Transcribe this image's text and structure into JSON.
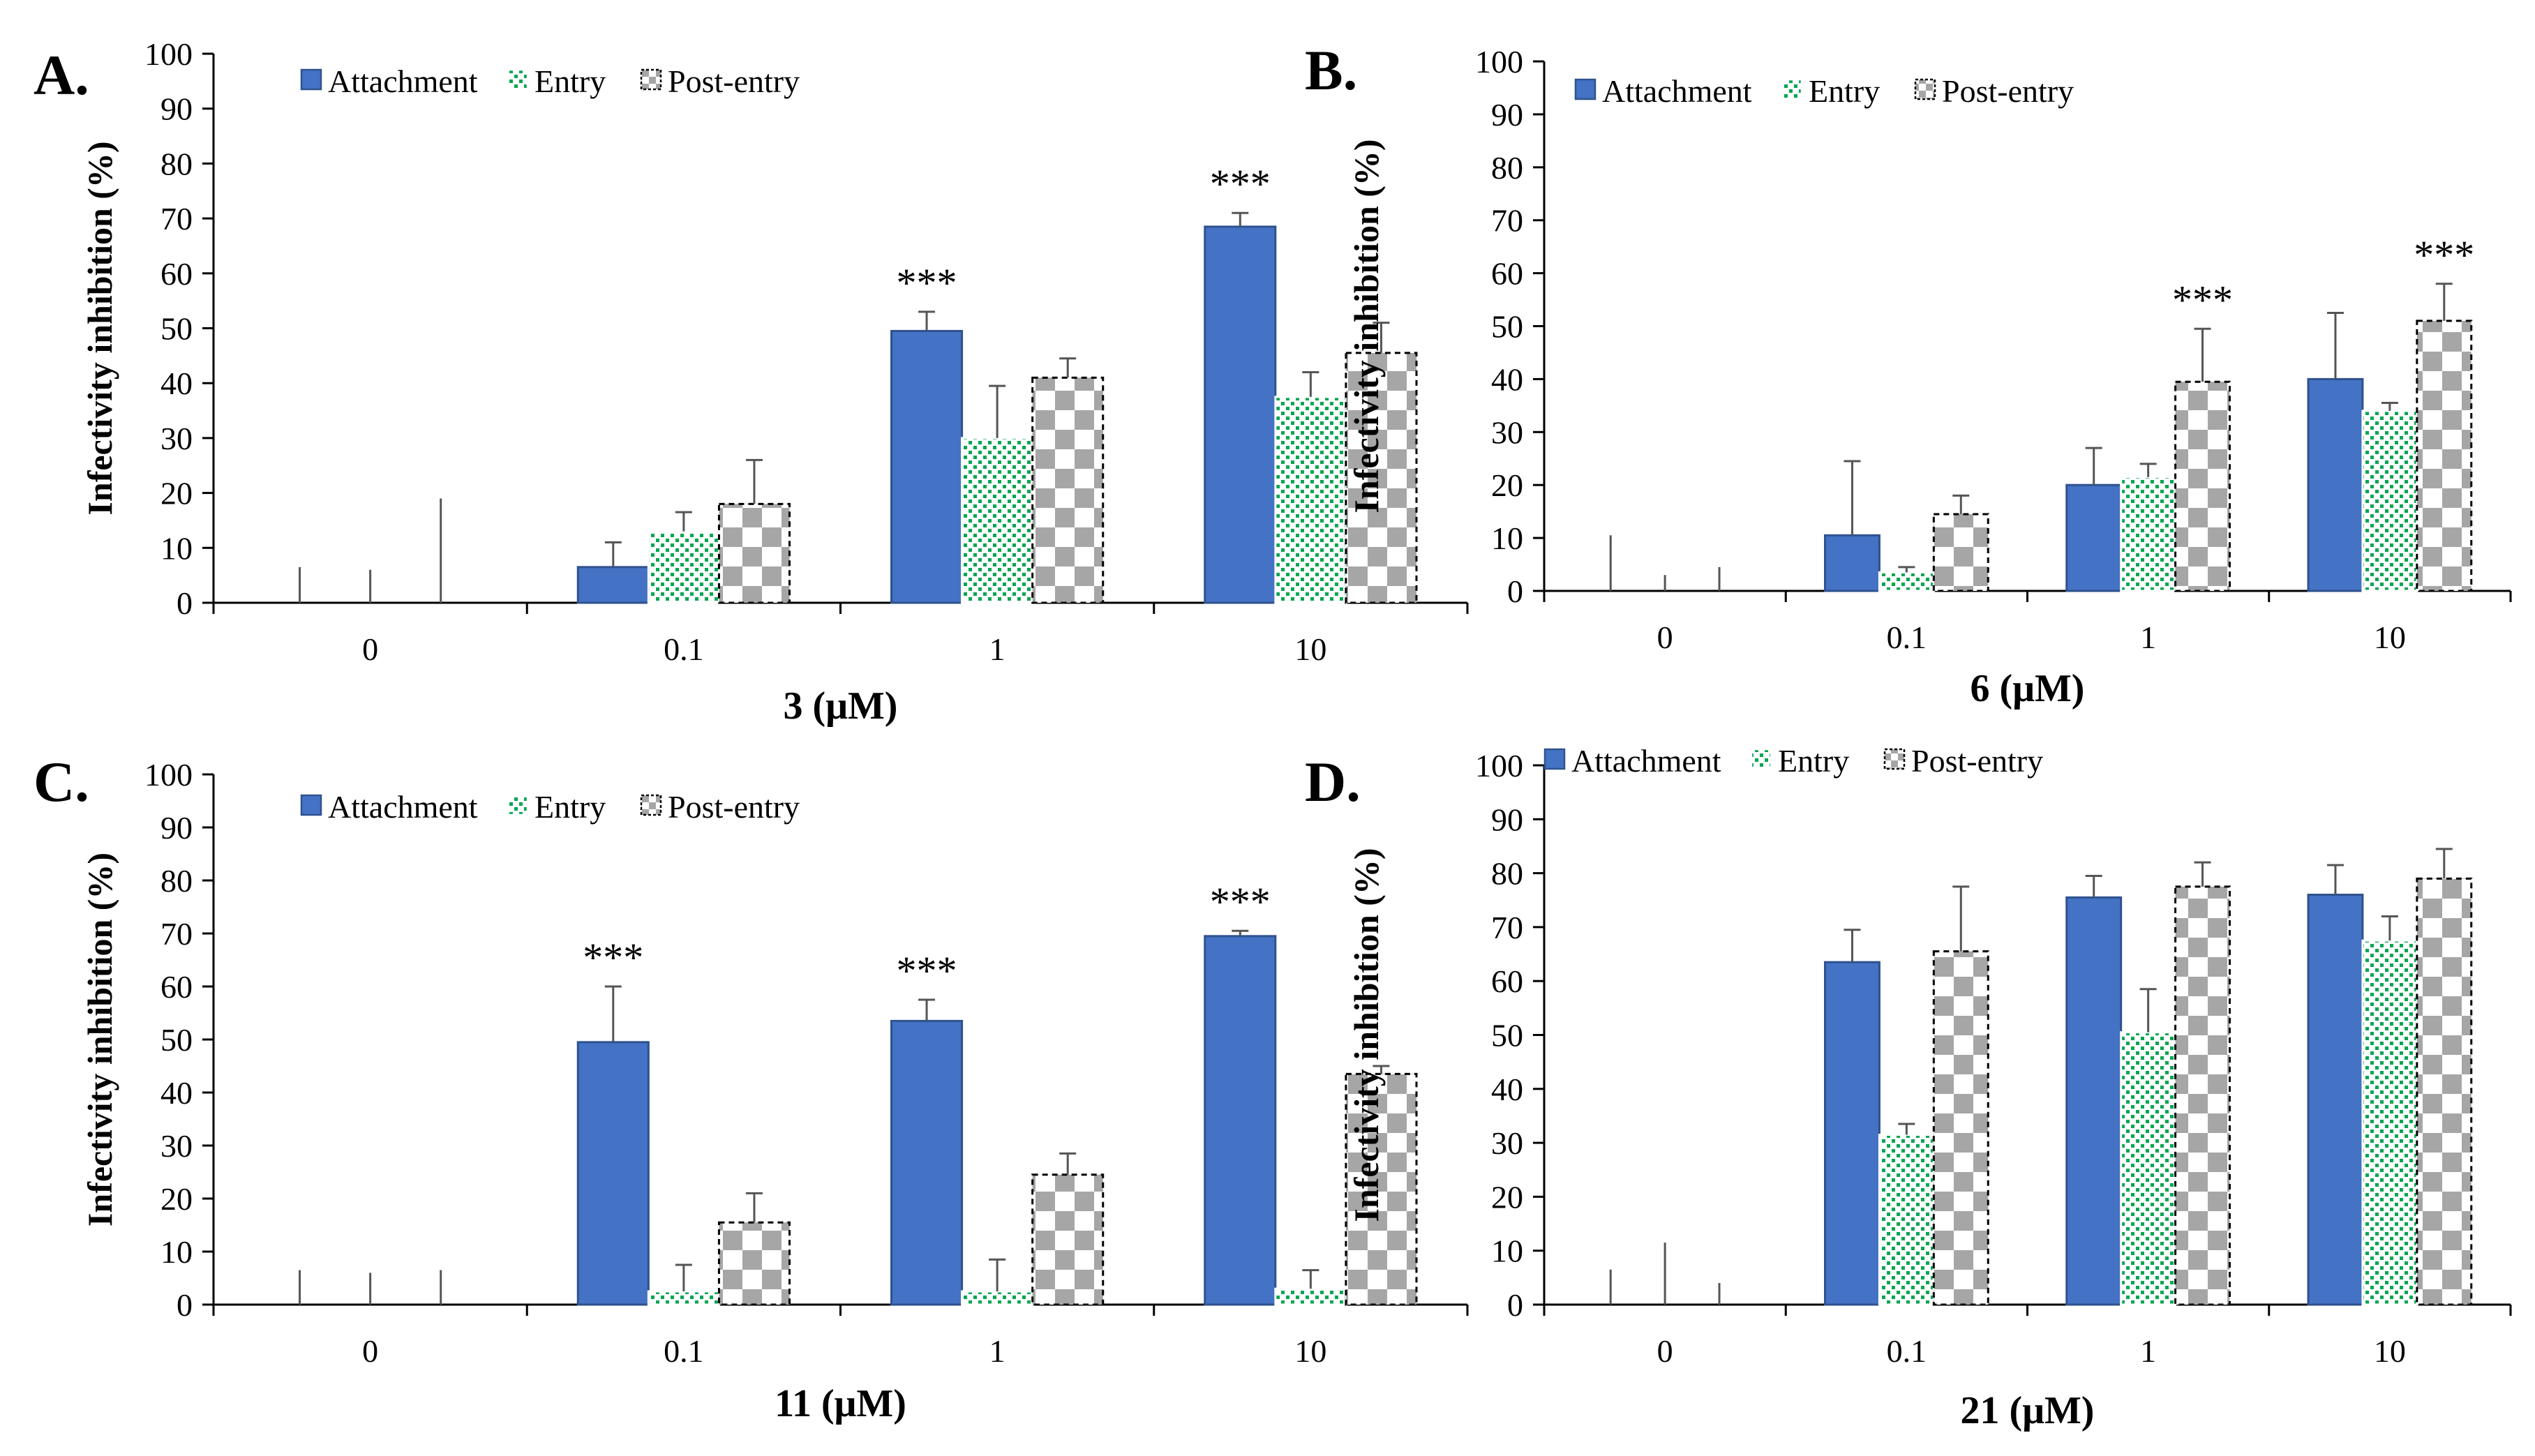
{
  "series_names": [
    "Attachment",
    "Entry",
    "Post-entry"
  ],
  "colors": {
    "attachment": "#4472C4",
    "attachment_border": "#2F528F",
    "entry_dot": "#00A651",
    "checker": "#A6A6A6",
    "axis": "#000000"
  },
  "chart_data": [
    {
      "type": "bar",
      "panel": "A.",
      "xlabel_num": "3",
      "xlabel_unit": " (μM)",
      "ylabel": "Infectivity inhibition (%)",
      "ylim": [
        0,
        100
      ],
      "yticks": [
        0,
        10,
        20,
        30,
        40,
        50,
        60,
        70,
        80,
        90,
        100
      ],
      "categories": [
        "0",
        "0.1",
        "1",
        "10"
      ],
      "series": [
        {
          "name": "Attachment",
          "values": [
            0,
            6.5,
            49.5,
            68.5
          ],
          "errors": [
            6.5,
            4.5,
            3.5,
            2.5
          ]
        },
        {
          "name": "Entry",
          "values": [
            0,
            13,
            30,
            37.5
          ],
          "errors": [
            6,
            3.5,
            9.5,
            4.5
          ]
        },
        {
          "name": "Post-entry",
          "values": [
            0,
            18,
            41,
            45.5
          ],
          "errors": [
            19,
            8,
            3.5,
            5.5
          ]
        }
      ],
      "annotations": [
        {
          "category": "1",
          "series": "Attachment",
          "text": "***"
        },
        {
          "category": "10",
          "series": "Attachment",
          "text": "***"
        }
      ]
    },
    {
      "type": "bar",
      "panel": "B.",
      "xlabel_num": "6",
      "xlabel_unit": " (μM)",
      "ylabel": "Infectivity inhibition (%)",
      "ylim": [
        0,
        100
      ],
      "yticks": [
        0,
        10,
        20,
        30,
        40,
        50,
        60,
        70,
        80,
        90,
        100
      ],
      "categories": [
        "0",
        "0.1",
        "1",
        "10"
      ],
      "series": [
        {
          "name": "Attachment",
          "values": [
            0,
            10.5,
            20,
            40
          ],
          "errors": [
            10.5,
            14,
            7,
            12.5
          ]
        },
        {
          "name": "Entry",
          "values": [
            0,
            3.5,
            21.5,
            34
          ],
          "errors": [
            3,
            1,
            2.5,
            1.5
          ]
        },
        {
          "name": "Post-entry",
          "values": [
            0,
            14.5,
            39.5,
            51
          ],
          "errors": [
            4.5,
            3.5,
            10,
            7
          ]
        }
      ],
      "annotations": [
        {
          "category": "1",
          "series": "Post-entry",
          "text": "***"
        },
        {
          "category": "10",
          "series": "Post-entry",
          "text": "***"
        }
      ]
    },
    {
      "type": "bar",
      "panel": "C.",
      "xlabel_num": "11",
      "xlabel_unit": " (μM)",
      "ylabel": "Infectivity inhibition (%)",
      "ylim": [
        0,
        100
      ],
      "yticks": [
        0,
        10,
        20,
        30,
        40,
        50,
        60,
        70,
        80,
        90,
        100
      ],
      "categories": [
        "0",
        "0.1",
        "1",
        "10"
      ],
      "series": [
        {
          "name": "Attachment",
          "values": [
            0,
            49.5,
            53.5,
            69.5
          ],
          "errors": [
            6.5,
            10.5,
            4,
            1
          ]
        },
        {
          "name": "Entry",
          "values": [
            0,
            2.5,
            2.5,
            3
          ],
          "errors": [
            6,
            5,
            6,
            3.5
          ]
        },
        {
          "name": "Post-entry",
          "values": [
            0,
            15.5,
            24.5,
            43.5
          ],
          "errors": [
            6.5,
            5.5,
            4,
            1.5
          ]
        }
      ],
      "annotations": [
        {
          "category": "0.1",
          "series": "Attachment",
          "text": "***"
        },
        {
          "category": "1",
          "series": "Attachment",
          "text": "***"
        },
        {
          "category": "10",
          "series": "Attachment",
          "text": "***"
        }
      ]
    },
    {
      "type": "bar",
      "panel": "D.",
      "xlabel_num": "21",
      "xlabel_unit": " (μM)",
      "ylabel": "Infectivity inhibition (%)",
      "ylim": [
        0,
        100
      ],
      "yticks": [
        0,
        10,
        20,
        30,
        40,
        50,
        60,
        70,
        80,
        90,
        100
      ],
      "categories": [
        "0",
        "0.1",
        "1",
        "10"
      ],
      "series": [
        {
          "name": "Attachment",
          "values": [
            0,
            63.5,
            75.5,
            76
          ],
          "errors": [
            6.5,
            6,
            4,
            5.5
          ]
        },
        {
          "name": "Entry",
          "values": [
            0,
            31.5,
            50.5,
            67.5
          ],
          "errors": [
            11.5,
            2,
            8,
            4.5
          ]
        },
        {
          "name": "Post-entry",
          "values": [
            0,
            65.5,
            77.5,
            79
          ],
          "errors": [
            4,
            12,
            4.5,
            5.5
          ]
        }
      ],
      "annotations": []
    }
  ]
}
